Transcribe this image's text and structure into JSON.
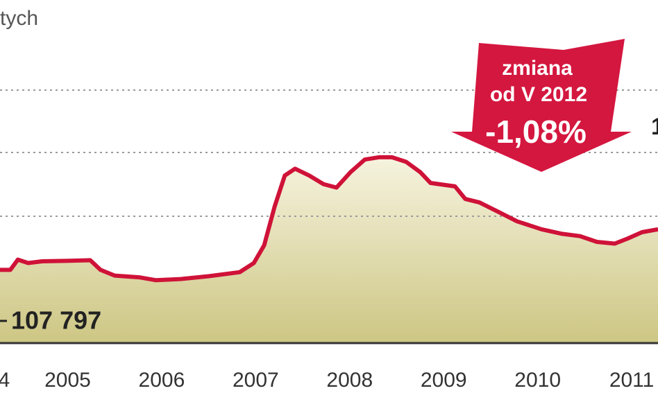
{
  "chart_data": {
    "type": "area-line",
    "unit": "tych",
    "end_label": "1",
    "annotation": [
      "zmiana",
      "od V 2012",
      "-1,08%"
    ],
    "color": "#cf1238",
    "fill_top": "#f6f3df",
    "fill_bottom": "#cdc683",
    "xlim": [
      2004.28,
      2011.28
    ],
    "ylim": [
      95000,
      155000
    ],
    "xticks": [
      {
        "value": 2004,
        "label": "4"
      },
      2005,
      2006,
      2007,
      2008,
      2009,
      2010,
      2011
    ],
    "x": [
      2004.28,
      2004.39,
      2004.47,
      2004.58,
      2004.73,
      2005.02,
      2005.24,
      2005.35,
      2005.5,
      2005.76,
      2005.94,
      2006.2,
      2006.5,
      2006.83,
      2006.98,
      2007.09,
      2007.2,
      2007.31,
      2007.42,
      2007.57,
      2007.72,
      2007.86,
      2008.01,
      2008.16,
      2008.31,
      2008.45,
      2008.6,
      2008.75,
      2008.86,
      2009.12,
      2009.23,
      2009.38,
      2009.6,
      2009.78,
      2010.04,
      2010.26,
      2010.45,
      2010.63,
      2010.82,
      2010.96,
      2011.11,
      2011.28
    ],
    "values": [
      107797,
      107800,
      109600,
      109000,
      109300,
      109400,
      109500,
      107800,
      106800,
      106500,
      106000,
      106200,
      106700,
      107400,
      109000,
      112100,
      118800,
      124300,
      125500,
      124300,
      122800,
      122200,
      124900,
      127100,
      127500,
      127500,
      126700,
      124900,
      123000,
      122400,
      120200,
      119600,
      117800,
      116300,
      114900,
      114100,
      113700,
      112700,
      112400,
      113300,
      114400,
      114900
    ],
    "value_labels": [
      "107 797",
      null,
      null,
      null,
      null,
      null,
      null,
      null,
      null,
      null,
      null,
      null,
      null,
      null,
      null,
      null,
      null,
      null,
      null,
      null,
      null,
      null,
      null,
      null,
      null,
      null,
      null,
      null,
      null,
      null,
      null,
      null,
      null,
      null,
      null,
      null,
      null,
      null,
      null,
      null,
      null,
      null
    ]
  }
}
